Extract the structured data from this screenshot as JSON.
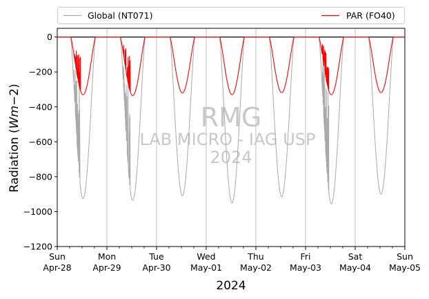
{
  "chart_data": {
    "type": "line",
    "title": "",
    "xlabel": "2024",
    "ylabel": "Radiation (Wm−2)",
    "ylim": [
      -1200,
      50
    ],
    "yticks": [
      0,
      -200,
      -400,
      -600,
      -800,
      -1000,
      -1200
    ],
    "ytick_labels": [
      "0",
      "−200",
      "−400",
      "−600",
      "−800",
      "−1000",
      "−1200"
    ],
    "x_range": [
      "2024-04-28",
      "2024-05-05"
    ],
    "x_ticks": [
      {
        "date": "2024-04-28",
        "day": "Sun",
        "label": "Apr-28"
      },
      {
        "date": "2024-04-29",
        "day": "Mon",
        "label": "Apr-29"
      },
      {
        "date": "2024-04-30",
        "day": "Tue",
        "label": "Apr-30"
      },
      {
        "date": "2024-05-01",
        "day": "Wed",
        "label": "May-01"
      },
      {
        "date": "2024-05-02",
        "day": "Thu",
        "label": "May-02"
      },
      {
        "date": "2024-05-03",
        "day": "Fri",
        "label": "May-03"
      },
      {
        "date": "2024-05-04",
        "day": "Sat",
        "label": "May-04"
      },
      {
        "date": "2024-05-05",
        "day": "Sun",
        "label": "May-05"
      }
    ],
    "grid": "vertical",
    "zero_line": true,
    "legend_placement": "top, above plot",
    "series": [
      {
        "name": "Global (NT071)",
        "color": "#a9a9a9",
        "daily_min": [
          -925,
          -935,
          -910,
          -950,
          -915,
          -955,
          -900
        ],
        "cloudy": [
          true,
          true,
          false,
          false,
          false,
          true,
          false
        ]
      },
      {
        "name": "PAR (FO40)",
        "color": "#ff0000",
        "daily_min": [
          -330,
          -335,
          -320,
          -330,
          -318,
          -330,
          -318
        ],
        "cloudy": [
          true,
          true,
          false,
          false,
          false,
          true,
          false
        ]
      }
    ],
    "watermark": [
      "RMG",
      "LAB MICRO - IAG USP",
      "2024"
    ]
  }
}
